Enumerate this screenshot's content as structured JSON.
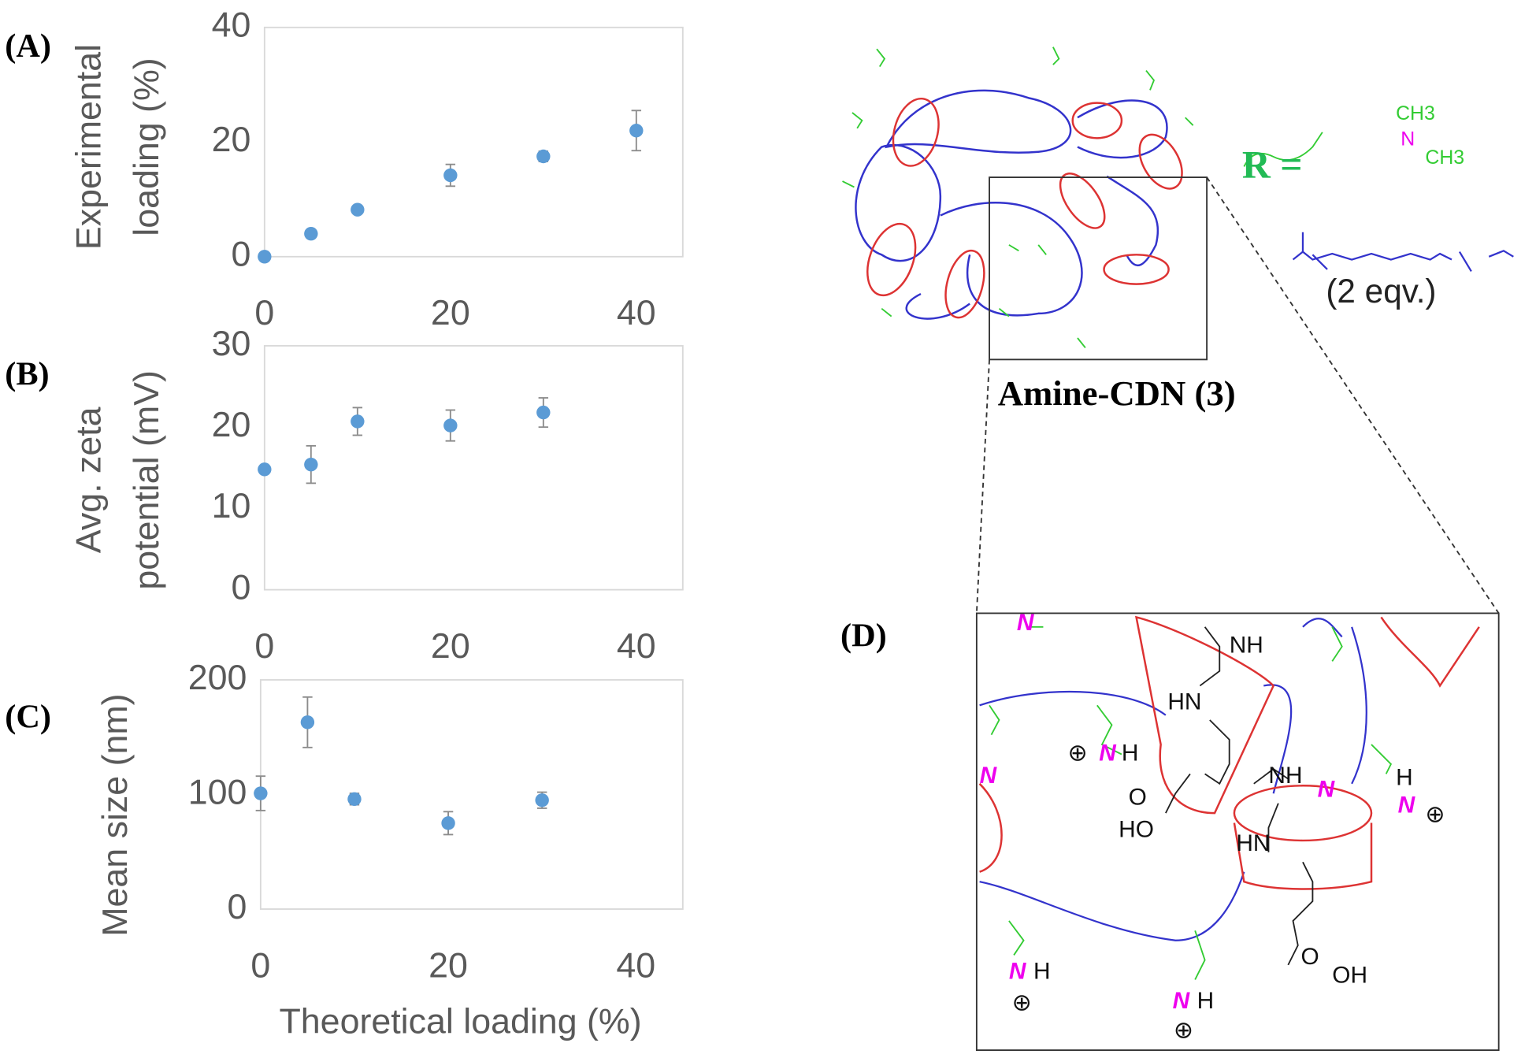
{
  "chart_data": [
    {
      "type": "scatter",
      "panel": "(A)",
      "y_label": [
        "Experimental",
        "loading (%)"
      ],
      "x": [
        0,
        5,
        10,
        20,
        30,
        40
      ],
      "values": [
        0,
        4,
        8.2,
        14.2,
        17.5,
        22
      ],
      "errors": [
        0,
        0.6,
        0.4,
        1.9,
        0.9,
        3.5
      ],
      "color": "#5b9bd5",
      "xlim": [
        0,
        45
      ],
      "ylim": [
        0,
        40
      ],
      "xticks": [
        0,
        20,
        40
      ],
      "yticks": [
        0,
        20,
        40
      ]
    },
    {
      "type": "scatter",
      "panel": "(B)",
      "y_label": [
        "Avg. zeta",
        "potential (mV)"
      ],
      "x": [
        0,
        5,
        10,
        20,
        30
      ],
      "values": [
        14.8,
        15.4,
        20.7,
        20.2,
        21.8
      ],
      "errors": [
        0,
        2.3,
        1.7,
        1.9,
        1.8
      ],
      "color": "#5b9bd5",
      "xlim": [
        0,
        45
      ],
      "ylim": [
        0,
        30
      ],
      "xticks": [
        0,
        20,
        40
      ],
      "yticks": [
        0,
        10,
        20,
        30
      ]
    },
    {
      "type": "scatter",
      "panel": "(C)",
      "y_label": [
        "Mean size (nm)"
      ],
      "x_label": "Theoretical loading (%)",
      "x": [
        0,
        5,
        10,
        20,
        30
      ],
      "values": [
        101,
        163,
        96,
        75,
        95
      ],
      "errors": [
        15,
        22,
        5,
        10,
        7
      ],
      "color": "#5b9bd5",
      "xlim": [
        0,
        45
      ],
      "ylim": [
        0,
        200
      ],
      "xticks": [
        0,
        20,
        40
      ],
      "yticks": [
        0,
        100,
        200
      ]
    }
  ],
  "diagram": {
    "r_label": "R =",
    "name": "Amine-CDN (3)",
    "equiv": "(2 eqv.)",
    "inset": "(D)",
    "r_group": [
      "CH3",
      "N",
      "CH3"
    ],
    "inset_labels": [
      "N",
      "NH",
      "HN",
      "⊕",
      "N",
      "H",
      "N",
      "NH",
      "N",
      "H",
      "N",
      "⊕",
      "O",
      "HO",
      "HN",
      "O",
      "OH",
      "N",
      "H",
      "⊕",
      "N",
      "H",
      "⊕"
    ]
  }
}
